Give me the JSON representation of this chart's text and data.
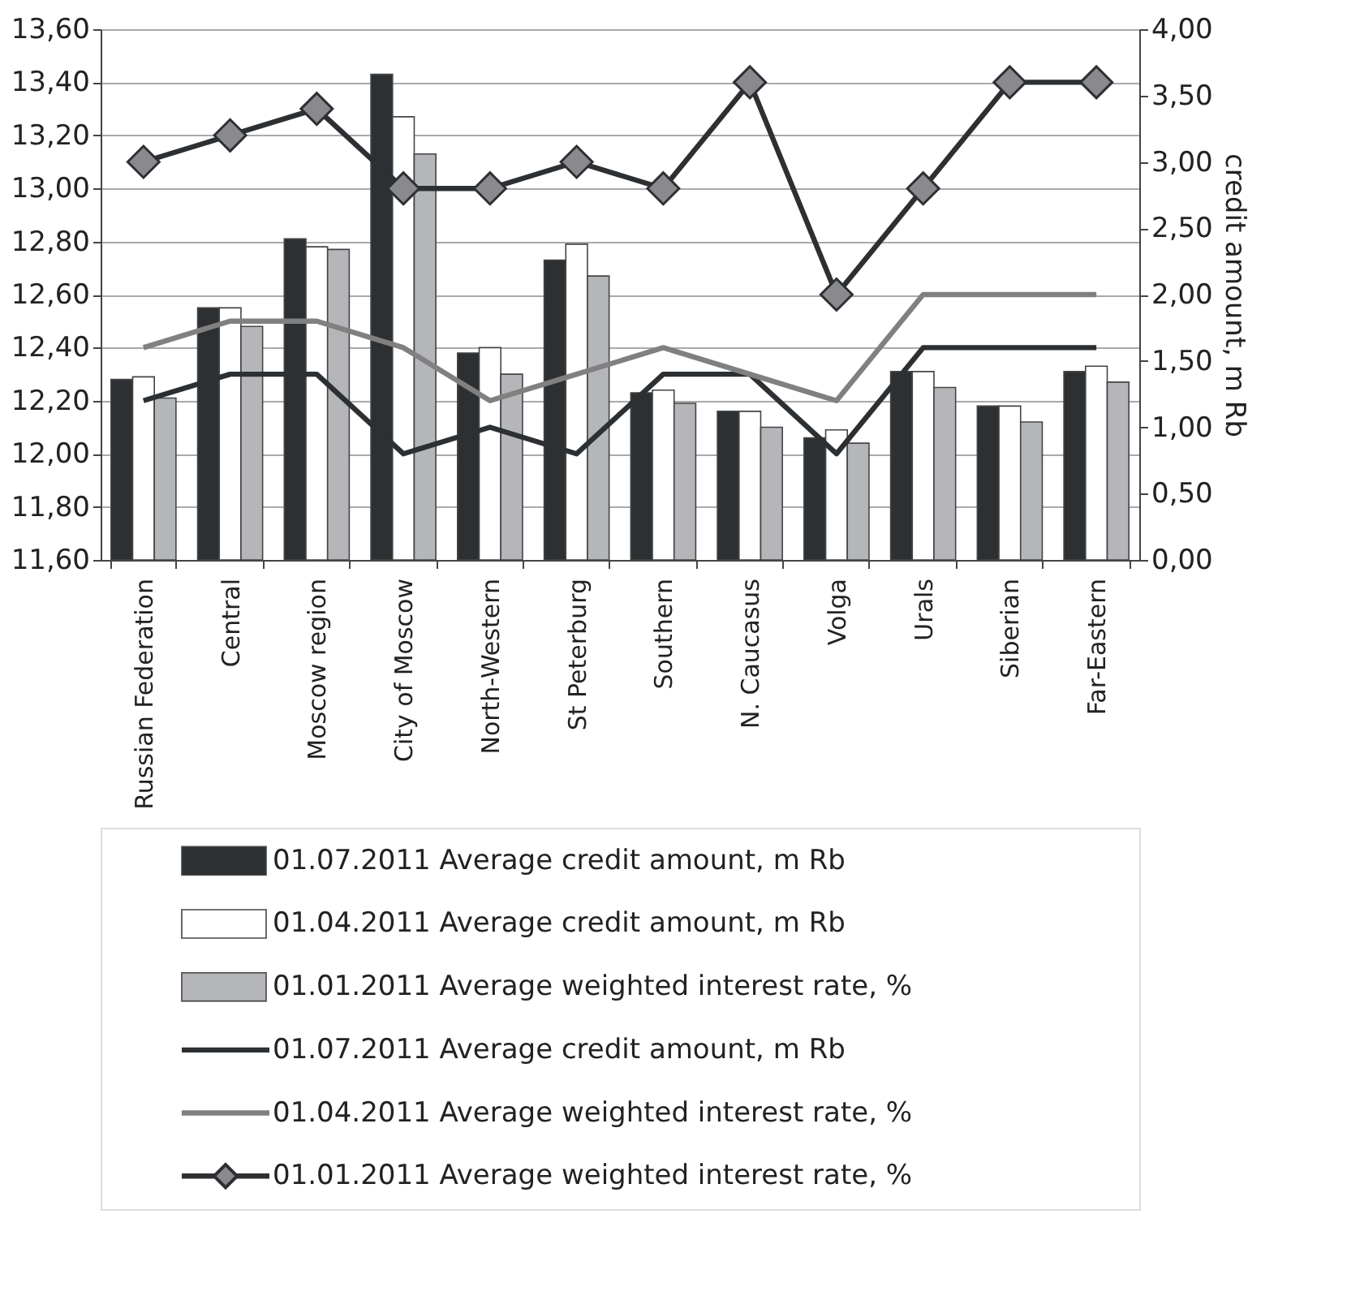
{
  "chart_data": {
    "type": "bar",
    "categories": [
      "Russian Federation",
      "Central",
      "Moscow region",
      "City of Moscow",
      "North-Western",
      "St Peterburg",
      "Southern",
      "N. Caucasus",
      "Volga",
      "Urals",
      "Siberian",
      "Far-Eastern"
    ],
    "y2label": "credit amount, m Rb",
    "ylim": [
      11.6,
      13.6
    ],
    "yticks": [
      {
        "value": 11.6,
        "label": "11,60"
      },
      {
        "value": 11.8,
        "label": "11,80"
      },
      {
        "value": 12.0,
        "label": "12,00"
      },
      {
        "value": 12.2,
        "label": "12,20"
      },
      {
        "value": 12.4,
        "label": "12,40"
      },
      {
        "value": 12.6,
        "label": "12,60"
      },
      {
        "value": 12.8,
        "label": "12,80"
      },
      {
        "value": 13.0,
        "label": "13,00"
      },
      {
        "value": 13.2,
        "label": "13,20"
      },
      {
        "value": 13.4,
        "label": "13,40"
      },
      {
        "value": 13.6,
        "label": "13,60"
      }
    ],
    "y2lim": [
      0,
      4
    ],
    "y2ticks": [
      {
        "value": 0,
        "label": "0,00"
      },
      {
        "value": 0.5,
        "label": "0,50"
      },
      {
        "value": 1.0,
        "label": "1,00"
      },
      {
        "value": 1.5,
        "label": "1,50"
      },
      {
        "value": 2.0,
        "label": "2,00"
      },
      {
        "value": 2.5,
        "label": "2,50"
      },
      {
        "value": 3.0,
        "label": "3,00"
      },
      {
        "value": 3.5,
        "label": "3,50"
      },
      {
        "value": 4.0,
        "label": "4,00"
      }
    ],
    "grid": "y",
    "legend": "bottom",
    "series": [
      {
        "name": "01.07.2011 Average credit amount, m Rb",
        "color": "#2d3033",
        "values": [
          12.28,
          12.55,
          12.81,
          13.43,
          12.38,
          12.73,
          12.23,
          12.16,
          12.06,
          12.31,
          12.18,
          12.31
        ]
      },
      {
        "name": "01.04.2011 Average credit amount, m Rb",
        "color": "#ffffff",
        "values": [
          12.29,
          12.55,
          12.78,
          13.27,
          12.4,
          12.79,
          12.24,
          12.16,
          12.09,
          12.31,
          12.18,
          12.33
        ]
      },
      {
        "name": "01.01.2011 Average weighted interest rate, %",
        "color": "#b5b6ba",
        "values": [
          12.21,
          12.48,
          12.77,
          13.13,
          12.3,
          12.67,
          12.19,
          12.1,
          12.04,
          12.25,
          12.12,
          12.27
        ]
      },
      {
        "name": "01.07.2011 Average credit amount, m Rb",
        "type": "line",
        "axis": "y2",
        "color": "#2d3033",
        "values": [
          1.2,
          1.4,
          1.4,
          0.8,
          1.0,
          0.8,
          1.4,
          1.4,
          0.8,
          1.6,
          1.6,
          1.6
        ]
      },
      {
        "name": "01.04.2011 Average weighted interest rate, %",
        "type": "line",
        "axis": "y2",
        "color": "#808080",
        "values": [
          1.6,
          1.8,
          1.8,
          1.6,
          1.2,
          1.4,
          1.6,
          1.4,
          1.2,
          2.0,
          2.0,
          2.0
        ]
      },
      {
        "name": "01.01.2011 Average weighted interest rate, %",
        "type": "line",
        "axis": "y2",
        "color": "#2d3033",
        "marker": "diamond",
        "values": [
          3.0,
          3.2,
          3.4,
          2.8,
          2.8,
          3.0,
          2.8,
          3.6,
          2.0,
          2.8,
          3.6,
          3.6
        ]
      }
    ]
  }
}
